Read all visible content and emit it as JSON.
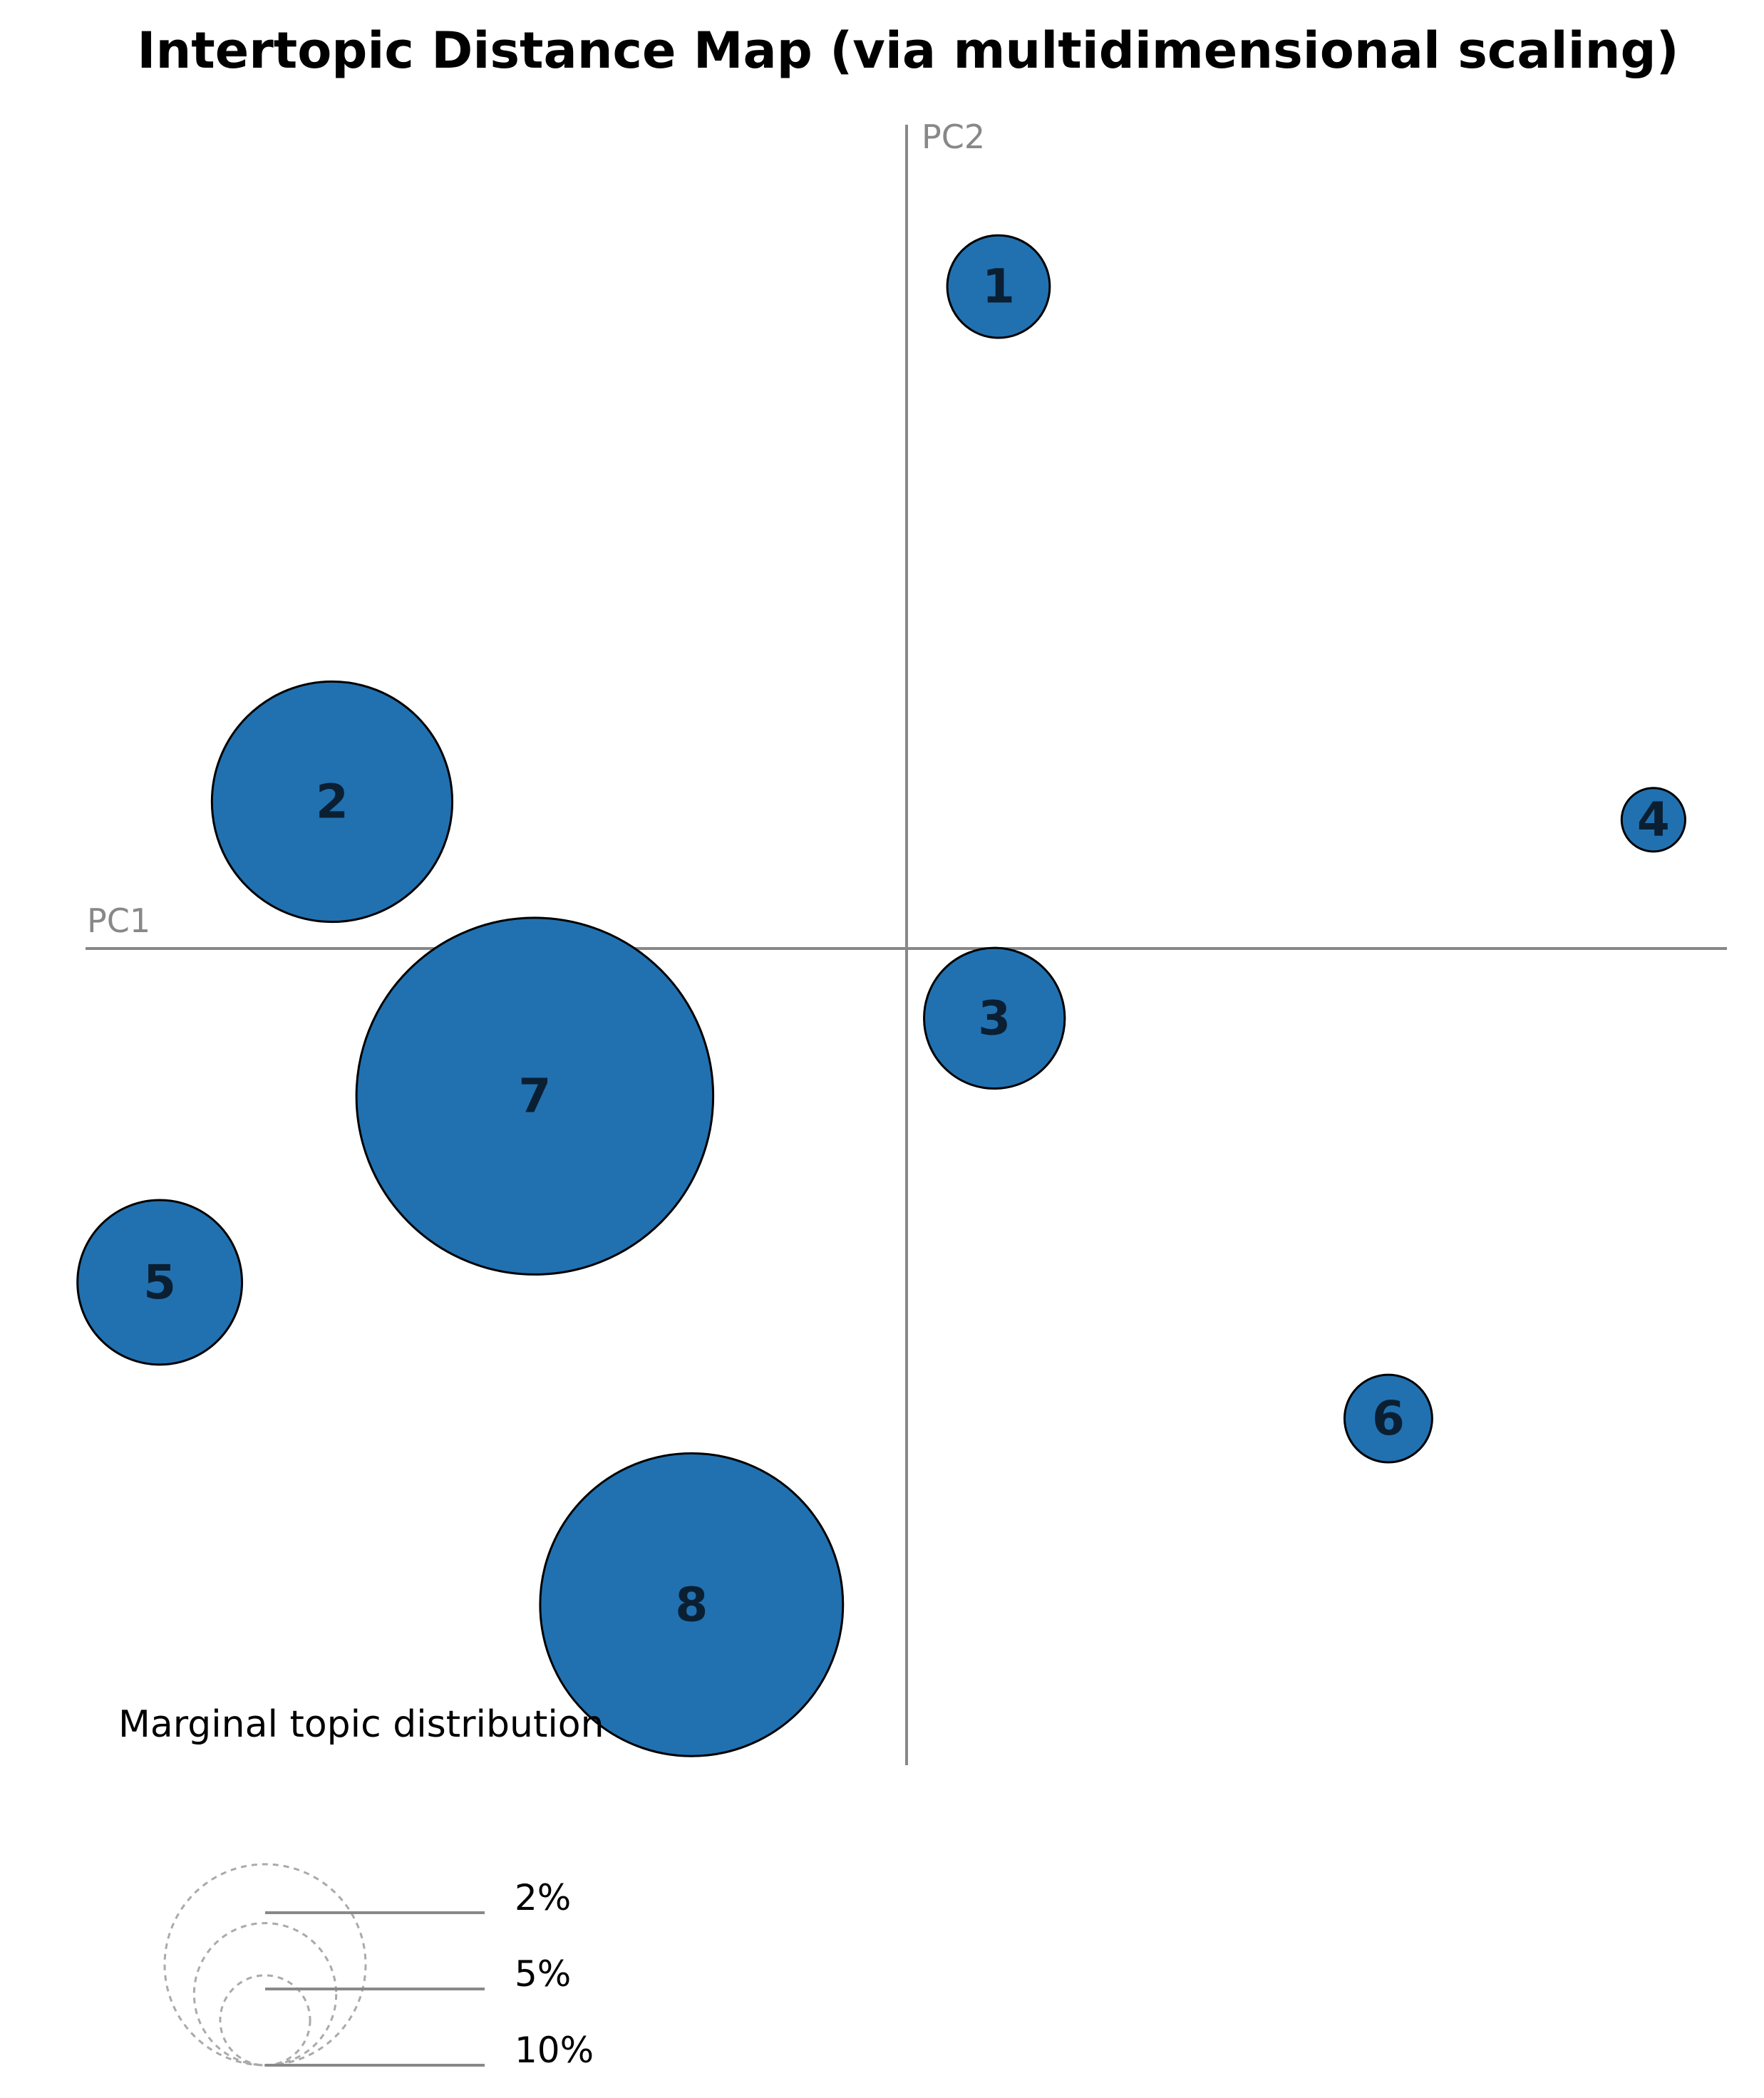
{
  "chart_data": {
    "type": "scatter",
    "title": "Intertopic Distance Map (via multidimensional scaling)",
    "xlabel": "PC1",
    "ylabel": "PC2",
    "xlim": [
      -10,
      10
    ],
    "ylim": [
      -10,
      10
    ],
    "topics": [
      {
        "label": "1",
        "x": 1.12,
        "y": 8.07,
        "size": 2.6
      },
      {
        "label": "2",
        "x": -7.0,
        "y": 1.79,
        "size": 14.3
      },
      {
        "label": "3",
        "x": 1.07,
        "y": -0.85,
        "size": 4.9
      },
      {
        "label": "4",
        "x": 9.1,
        "y": 1.57,
        "size": 1.0
      },
      {
        "label": "5",
        "x": -9.1,
        "y": -4.07,
        "size": 6.7
      },
      {
        "label": "6",
        "x": 5.87,
        "y": -5.73,
        "size": 1.9
      },
      {
        "label": "7",
        "x": -4.53,
        "y": -1.8,
        "size": 31.5
      },
      {
        "label": "8",
        "x": -2.62,
        "y": -8.0,
        "size": 22.7
      }
    ],
    "legend": {
      "title": "Marginal topic distribution",
      "levels": [
        {
          "label": "2%",
          "value": 2
        },
        {
          "label": "5%",
          "value": 5
        },
        {
          "label": "10%",
          "value": 10
        }
      ]
    },
    "colors": {
      "marker_fill": "#2171b0",
      "marker_stroke": "#000000",
      "axis": "#888888",
      "legend_stroke": "#aaaaaa"
    }
  }
}
